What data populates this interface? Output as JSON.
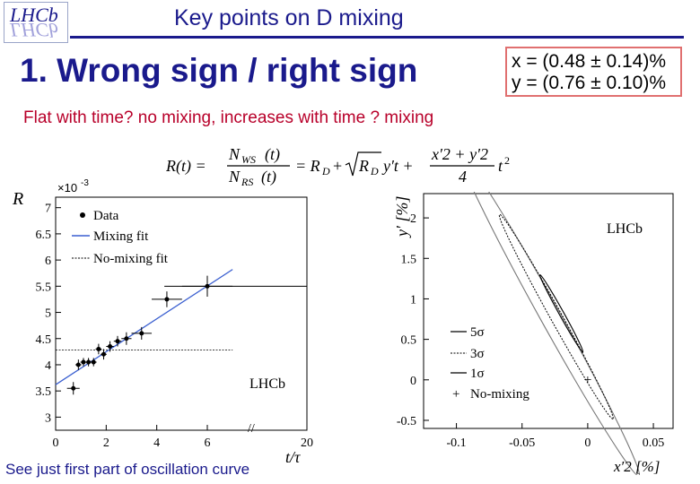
{
  "header": {
    "title": "Key points on D mixing",
    "logo_text": "LHCb",
    "logo_reflection": "LHCb"
  },
  "main": {
    "heading": "1. Wrong sign / right sign",
    "subtitle": "Flat with time? no mixing, increases with time ? mixing",
    "results": [
      "x = (0.48 ± 0.14)%",
      "y = (0.76 ± 0.10)%"
    ],
    "formula": {
      "lhs": "R(t) =",
      "frac1_num": "N",
      "frac1_num_sub": "WS",
      "frac1_num_arg": "(t)",
      "frac1_den": "N",
      "frac1_den_sub": "RS",
      "frac1_den_arg": "(t)",
      "rhs1": "= R",
      "rhs1_sub": "D",
      "rhs2": "+",
      "rhs3": "R",
      "rhs3_sub": "D",
      "rhs4": "y′t +",
      "frac2_num": "x′2 + y′2",
      "frac2_den": "4",
      "rhs5": "t",
      "rhs5_sup": "2"
    },
    "footer_note": "See just first part of oscillation curve"
  },
  "chart_data": [
    {
      "type": "scatter",
      "title": "",
      "ylabel": "R",
      "xlabel": "t/τ",
      "y_multiplier": "×10",
      "y_multiplier_exp": "-3",
      "xlim": [
        0,
        20
      ],
      "ylim": [
        2.75,
        7.2
      ],
      "x_ticks": [
        0,
        2,
        4,
        6,
        20
      ],
      "y_ticks": [
        3,
        3.5,
        4,
        4.5,
        5,
        5.5,
        6,
        6.5,
        7
      ],
      "x_ticks_shown": [
        "0",
        "2",
        "4",
        "6",
        "20"
      ],
      "y_ticks_shown": [
        "3",
        "3.5",
        "4",
        "4.5",
        "5",
        "5.5",
        "6",
        "6.5",
        "7"
      ],
      "axis_break": "//",
      "annotation": "LHCb",
      "legend": {
        "placement": "top-left",
        "entries": [
          "Data",
          "Mixing fit",
          "No-mixing fit"
        ]
      },
      "series": [
        {
          "name": "Data",
          "points": [
            {
              "x": 0.7,
              "y": 3.55,
              "xerr": 0.25,
              "yerr": 0.12
            },
            {
              "x": 0.9,
              "y": 4.0,
              "xerr": 0.12,
              "yerr": 0.1
            },
            {
              "x": 1.1,
              "y": 4.05,
              "xerr": 0.12,
              "yerr": 0.08
            },
            {
              "x": 1.3,
              "y": 4.05,
              "xerr": 0.12,
              "yerr": 0.08
            },
            {
              "x": 1.5,
              "y": 4.05,
              "xerr": 0.12,
              "yerr": 0.08
            },
            {
              "x": 1.7,
              "y": 4.3,
              "xerr": 0.12,
              "yerr": 0.1
            },
            {
              "x": 1.9,
              "y": 4.2,
              "xerr": 0.12,
              "yerr": 0.1
            },
            {
              "x": 2.15,
              "y": 4.35,
              "xerr": 0.15,
              "yerr": 0.1
            },
            {
              "x": 2.45,
              "y": 4.45,
              "xerr": 0.15,
              "yerr": 0.1
            },
            {
              "x": 2.8,
              "y": 4.5,
              "xerr": 0.2,
              "yerr": 0.12
            },
            {
              "x": 3.4,
              "y": 4.6,
              "xerr": 0.4,
              "yerr": 0.12
            },
            {
              "x": 4.4,
              "y": 5.25,
              "xerr": 0.6,
              "yerr": 0.15
            },
            {
              "x": 6.0,
              "y": 5.5,
              "xerr": 1.0,
              "yerr": 0.2
            },
            {
              "x": 7.5,
              "y": 5.5,
              "xerr": 3.2,
              "yerr": 0.0
            }
          ]
        },
        {
          "name": "Mixing fit",
          "x": [
            0.0,
            7.0
          ],
          "y": [
            3.62,
            5.82
          ]
        },
        {
          "name": "No-mixing fit",
          "x": [
            0.0,
            7.0
          ],
          "y": [
            4.28,
            4.28
          ]
        }
      ]
    },
    {
      "type": "line",
      "title": "",
      "xlabel": "x′2 [%]",
      "ylabel": "y′ [%]",
      "xlim": [
        -0.125,
        0.065
      ],
      "ylim": [
        -0.6,
        2.3
      ],
      "x_ticks": [
        -0.1,
        -0.05,
        0,
        0.05
      ],
      "y_ticks": [
        -0.5,
        0,
        0.5,
        1,
        1.5,
        2
      ],
      "x_ticks_shown": [
        "-0.1",
        "-0.05",
        "0",
        "0.05"
      ],
      "y_ticks_shown": [
        "-0.5",
        "0",
        "0.5",
        "1",
        "1.5",
        "2"
      ],
      "annotation": "LHCb",
      "legend": {
        "placement": "bottom-left",
        "entries": [
          "5σ",
          "3σ",
          "1σ",
          "No-mixing"
        ]
      },
      "contours": [
        {
          "name": "5σ",
          "style": "solid",
          "cx": -0.029,
          "cy": 0.8,
          "rx": 0.104,
          "ry": 1.03,
          "angle_deg": -61
        },
        {
          "name": "3σ",
          "style": "dashed",
          "cx": -0.024,
          "cy": 0.78,
          "rx": 0.066,
          "ry": 0.6,
          "angle_deg": -61
        },
        {
          "name": "1σ",
          "style": "solid",
          "cx": -0.02,
          "cy": 0.82,
          "rx": 0.025,
          "ry": 0.24,
          "angle_deg": -61
        }
      ],
      "markers": [
        {
          "name": "No-mixing",
          "x": 0.0,
          "y": 0.0,
          "symbol": "+"
        }
      ]
    }
  ]
}
